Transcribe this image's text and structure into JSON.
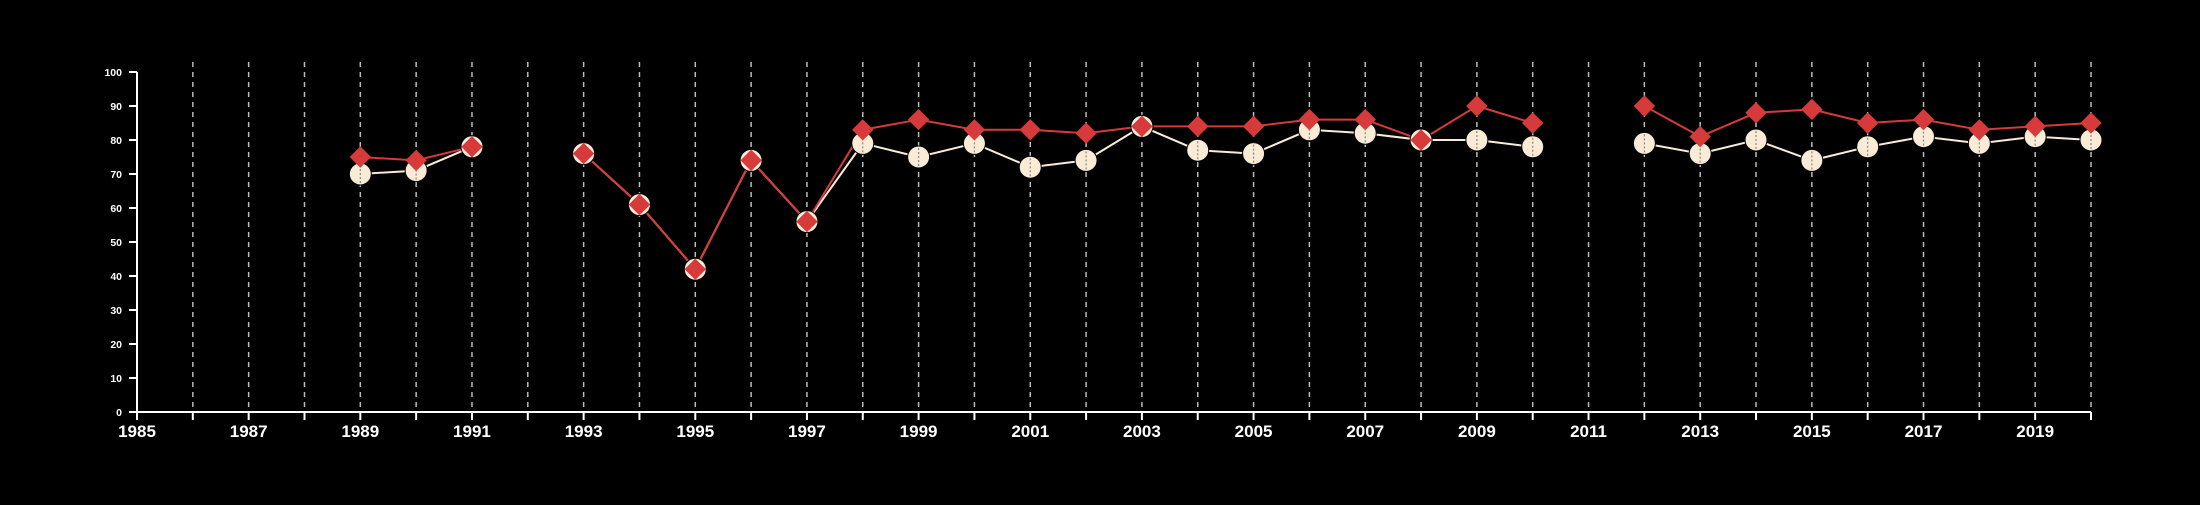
{
  "chart_data": {
    "type": "line",
    "title": "",
    "xlabel": "",
    "ylabel": "",
    "xlim": [
      1985,
      2020
    ],
    "ylim": [
      0,
      100
    ],
    "x_ticks": [
      1985,
      1987,
      1989,
      1991,
      1993,
      1995,
      1997,
      1999,
      2001,
      2003,
      2005,
      2007,
      2009,
      2011,
      2013,
      2015,
      2017,
      2019
    ],
    "y_ticks": [
      0,
      10,
      20,
      30,
      40,
      50,
      60,
      70,
      80,
      90,
      100
    ],
    "grid": "vertical dashed lines at every year",
    "legend": "none",
    "x": [
      1989,
      1990,
      1991,
      1992,
      1993,
      1994,
      1995,
      1996,
      1997,
      1998,
      1999,
      2000,
      2001,
      2002,
      2003,
      2004,
      2005,
      2006,
      2007,
      2008,
      2009,
      2010,
      2011,
      2012,
      2013,
      2014,
      2015,
      2016,
      2017,
      2018,
      2019,
      2020
    ],
    "series": [
      {
        "marker": "diamond",
        "color": "#d63a3a",
        "values": [
          75,
          74,
          78,
          null,
          76,
          61,
          42,
          74,
          56,
          83,
          86,
          83,
          83,
          82,
          84,
          84,
          84,
          86,
          86,
          80,
          90,
          85,
          null,
          90,
          81,
          88,
          89,
          85,
          86,
          83,
          84,
          85
        ]
      },
      {
        "marker": "circle",
        "color": "#faebd7",
        "values": [
          70,
          71,
          78,
          null,
          76,
          61,
          42,
          74,
          56,
          79,
          75,
          79,
          72,
          74,
          84,
          77,
          76,
          83,
          82,
          80,
          80,
          78,
          null,
          79,
          76,
          80,
          74,
          78,
          81,
          79,
          81,
          80
        ]
      }
    ]
  },
  "colors": {
    "background": "#000000",
    "axis": "#ffffff",
    "grid": "#bbbbbb",
    "circle_fill": "#faebd7",
    "circle_line": "#faebd7",
    "diamond_fill": "#d63a3a",
    "diamond_line": "#d63a3a",
    "marker_inner_dash": "#888888"
  }
}
